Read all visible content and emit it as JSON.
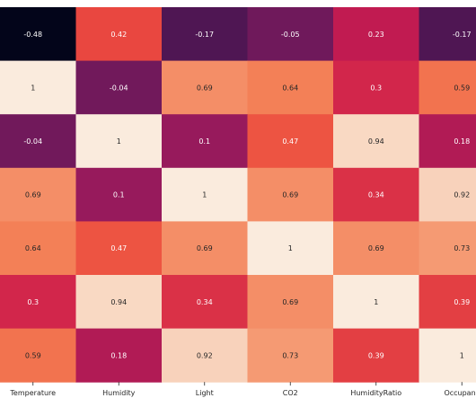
{
  "chart_data": {
    "type": "heatmap",
    "title": "",
    "xlabel": "",
    "ylabel": "",
    "x_labels": [
      "Temperature",
      "Humidity",
      "Light",
      "CO2",
      "HumidityRatio",
      "Occupancy"
    ],
    "x_labels_visible": [
      "Temperature",
      "Humidity",
      "Light",
      "CO2",
      "HumidityRatio",
      "Occupanc"
    ],
    "rows": [
      [
        -0.48,
        0.42,
        -0.17,
        -0.05,
        0.23,
        -0.17
      ],
      [
        1,
        -0.04,
        0.69,
        0.64,
        0.3,
        0.59
      ],
      [
        -0.04,
        1,
        0.1,
        0.47,
        0.94,
        0.18
      ],
      [
        0.69,
        0.1,
        1,
        0.69,
        0.34,
        0.92
      ],
      [
        0.64,
        0.47,
        0.69,
        1,
        0.69,
        0.73
      ],
      [
        0.3,
        0.94,
        0.34,
        0.69,
        1,
        0.39
      ],
      [
        0.59,
        0.18,
        0.92,
        0.73,
        0.39,
        1
      ]
    ],
    "colormap": "rocket",
    "value_range": [
      -0.48,
      1
    ],
    "annotated": true,
    "grid": false,
    "legend": "none"
  }
}
